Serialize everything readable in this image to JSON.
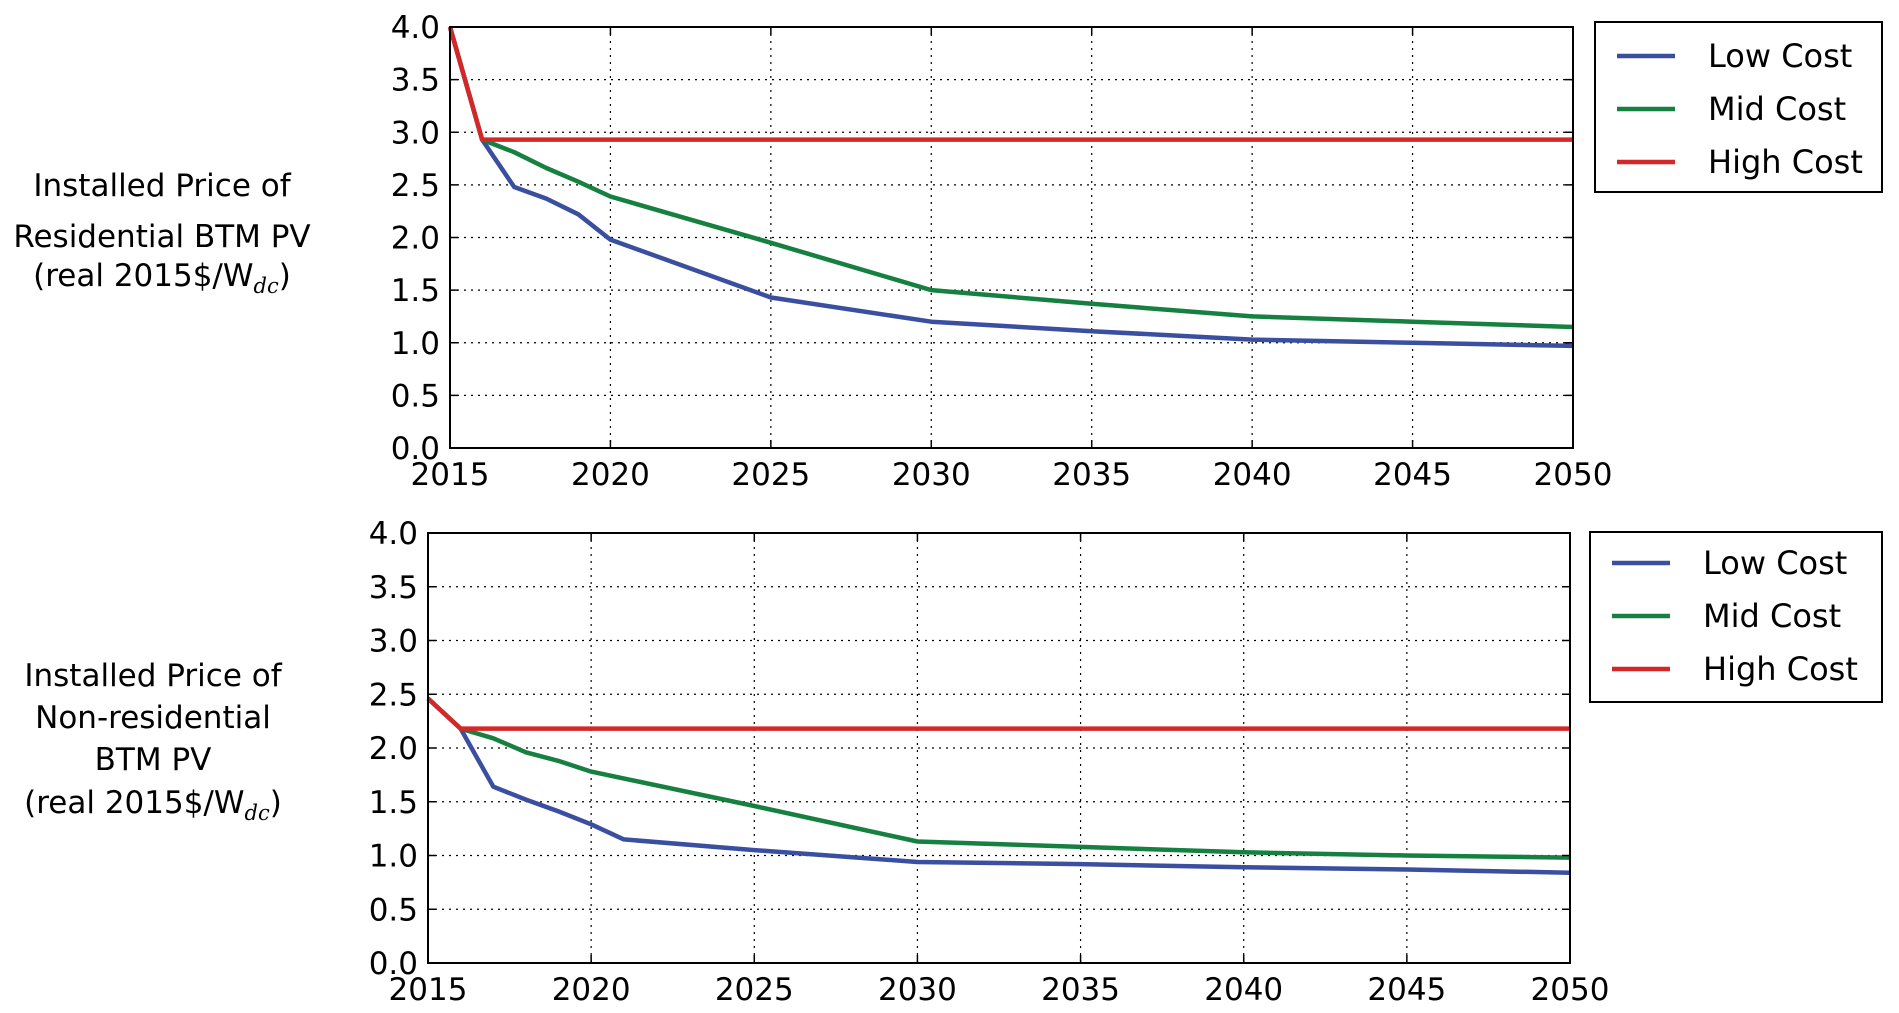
{
  "chart_data": [
    {
      "type": "line",
      "ylabel_lines": [
        "Installed Price of",
        "Residential BTM PV",
        "(real 2015$/W"
      ],
      "ylabel_unit_sub": "dc",
      "ylabel_unit_close": ")",
      "xlim": [
        2015,
        2050
      ],
      "ylim": [
        0,
        4
      ],
      "xticks": [
        "2015",
        "2020",
        "2025",
        "2030",
        "2035",
        "2040",
        "2045",
        "2050"
      ],
      "yticks": [
        "0.0",
        "0.5",
        "1.0",
        "1.5",
        "2.0",
        "2.5",
        "3.0",
        "3.5",
        "4.0"
      ],
      "grid": true,
      "legend_position": "outside-right-top",
      "series": [
        {
          "name": "Low Cost",
          "color": "#3a4fa0",
          "x": [
            2015,
            2016,
            2017,
            2018,
            2019,
            2020,
            2025,
            2030,
            2035,
            2040,
            2045,
            2050
          ],
          "y": [
            4.0,
            2.93,
            2.48,
            2.37,
            2.22,
            1.98,
            1.43,
            1.2,
            1.11,
            1.03,
            1.0,
            0.97
          ]
        },
        {
          "name": "Mid Cost",
          "color": "#168040",
          "x": [
            2015,
            2016,
            2017,
            2018,
            2019,
            2020,
            2025,
            2030,
            2035,
            2040,
            2045,
            2050
          ],
          "y": [
            4.0,
            2.93,
            2.81,
            2.66,
            2.53,
            2.39,
            1.95,
            1.5,
            1.37,
            1.25,
            1.2,
            1.15
          ]
        },
        {
          "name": "High Cost",
          "color": "#d62728",
          "x": [
            2015,
            2016,
            2050
          ],
          "y": [
            4.0,
            2.93,
            2.93
          ]
        }
      ]
    },
    {
      "type": "line",
      "ylabel_lines": [
        "Installed Price of",
        "Non-residential",
        "BTM PV",
        "(real 2015$/W"
      ],
      "ylabel_unit_sub": "dc",
      "ylabel_unit_close": ")",
      "xlim": [
        2015,
        2050
      ],
      "ylim": [
        0,
        4
      ],
      "xticks": [
        "2015",
        "2020",
        "2025",
        "2030",
        "2035",
        "2040",
        "2045",
        "2050"
      ],
      "yticks": [
        "0.0",
        "0.5",
        "1.0",
        "1.5",
        "2.0",
        "2.5",
        "3.0",
        "3.5",
        "4.0"
      ],
      "grid": true,
      "legend_position": "outside-right-top",
      "series": [
        {
          "name": "Low Cost",
          "color": "#3a4fa0",
          "x": [
            2015,
            2016,
            2017,
            2018,
            2019,
            2020,
            2021,
            2025,
            2030,
            2035,
            2040,
            2045,
            2050
          ],
          "y": [
            2.46,
            2.18,
            1.64,
            1.52,
            1.41,
            1.29,
            1.15,
            1.05,
            0.94,
            0.92,
            0.89,
            0.87,
            0.84
          ]
        },
        {
          "name": "Mid Cost",
          "color": "#168040",
          "x": [
            2015,
            2016,
            2017,
            2018,
            2019,
            2020,
            2025,
            2030,
            2035,
            2040,
            2045,
            2050
          ],
          "y": [
            2.46,
            2.18,
            2.09,
            1.96,
            1.88,
            1.78,
            1.46,
            1.13,
            1.08,
            1.03,
            1.0,
            0.98
          ]
        },
        {
          "name": "High Cost",
          "color": "#d62728",
          "x": [
            2015,
            2016,
            2050
          ],
          "y": [
            2.46,
            2.18,
            2.18
          ]
        }
      ]
    }
  ]
}
